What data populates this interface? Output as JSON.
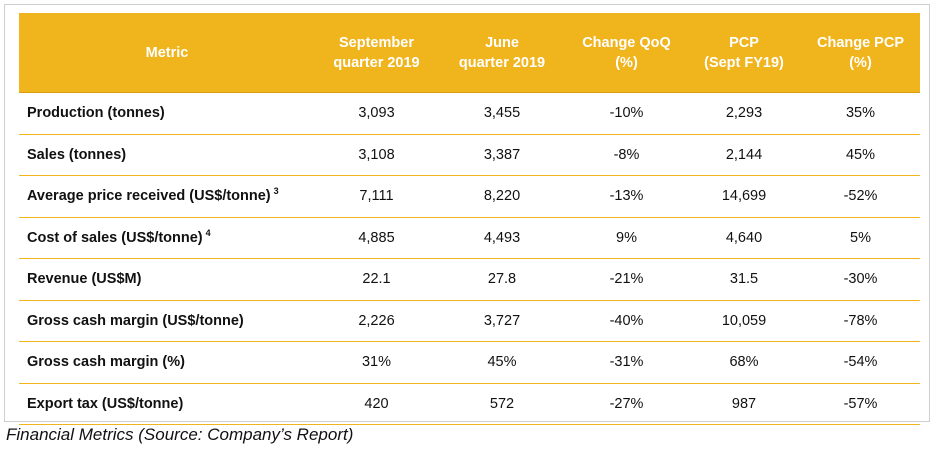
{
  "table": {
    "headers": [
      {
        "line1": "Metric",
        "line2": ""
      },
      {
        "line1": "September",
        "line2": "quarter 2019"
      },
      {
        "line1": "June",
        "line2": "quarter 2019"
      },
      {
        "line1": "Change QoQ",
        "line2": "(%)"
      },
      {
        "line1": "PCP",
        "line2": "(Sept FY19)"
      },
      {
        "line1": "Change PCP",
        "line2": "(%)"
      }
    ],
    "rows": [
      {
        "metric": "Production (tonnes)",
        "footnote": "",
        "sep_q2019": "3,093",
        "jun_q2019": "3,455",
        "change_qoq": "-10%",
        "pcp": "2,293",
        "change_pcp": "35%"
      },
      {
        "metric": "Sales (tonnes)",
        "footnote": "",
        "sep_q2019": "3,108",
        "jun_q2019": "3,387",
        "change_qoq": "-8%",
        "pcp": "2,144",
        "change_pcp": "45%"
      },
      {
        "metric": "Average price received (US$/tonne)",
        "footnote": "3",
        "sep_q2019": "7,111",
        "jun_q2019": "8,220",
        "change_qoq": "-13%",
        "pcp": "14,699",
        "change_pcp": "-52%"
      },
      {
        "metric": "Cost of sales (US$/tonne)",
        "footnote": "4",
        "sep_q2019": "4,885",
        "jun_q2019": "4,493",
        "change_qoq": "9%",
        "pcp": "4,640",
        "change_pcp": "5%"
      },
      {
        "metric": "Revenue (US$M)",
        "footnote": "",
        "sep_q2019": "22.1",
        "jun_q2019": "27.8",
        "change_qoq": "-21%",
        "pcp": "31.5",
        "change_pcp": "-30%"
      },
      {
        "metric": "Gross cash margin (US$/tonne)",
        "footnote": "",
        "sep_q2019": "2,226",
        "jun_q2019": "3,727",
        "change_qoq": "-40%",
        "pcp": "10,059",
        "change_pcp": "-78%"
      },
      {
        "metric": "Gross cash margin (%)",
        "footnote": "",
        "sep_q2019": "31%",
        "jun_q2019": "45%",
        "change_qoq": "-31%",
        "pcp": "68%",
        "change_pcp": "-54%"
      },
      {
        "metric": "Export tax (US$/tonne)",
        "footnote": "",
        "sep_q2019": "420",
        "jun_q2019": "572",
        "change_qoq": "-27%",
        "pcp": "987",
        "change_pcp": "-57%"
      }
    ]
  },
  "caption": "Financial Metrics (Source: Company’s Report)",
  "colors": {
    "header_bg": "#f0b41c",
    "header_text": "#ffffff",
    "row_divider": "#f0b41c"
  }
}
